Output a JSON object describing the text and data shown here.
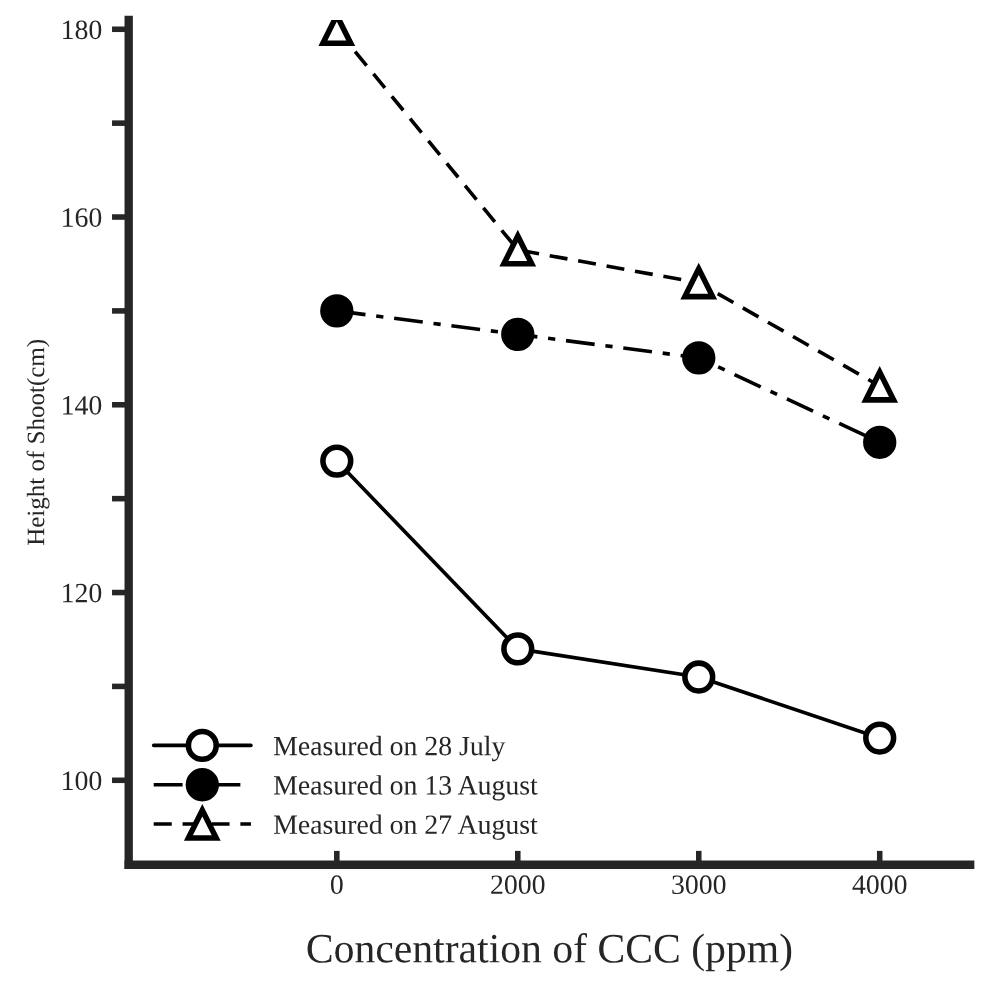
{
  "chart_data": {
    "type": "line",
    "xlabel": "Concentration of CCC (ppm)",
    "ylabel": "Height of Shoot(cm)",
    "categories": [
      "0",
      "2000",
      "3000",
      "4000"
    ],
    "series": [
      {
        "name": "Measured on 28 July",
        "color": "#000000",
        "marker": "circle",
        "line_style": "solid",
        "values": [
          134,
          114,
          111,
          104.5
        ]
      },
      {
        "name": "Measured on 13 August",
        "color": "#000000",
        "marker": "circle",
        "line_style": "dashdot",
        "values": [
          150,
          147.5,
          145,
          136
        ]
      },
      {
        "name": "Measured on 27 August",
        "color": "#000000",
        "marker": "triangle",
        "line_style": "dashed",
        "values": [
          180,
          156.5,
          153,
          142
        ]
      }
    ],
    "ylim": [
      91,
      181
    ],
    "yticks": [
      100,
      {
        "value": 110,
        "label": null
      },
      120,
      {
        "value": 130,
        "label": null
      },
      140,
      {
        "value": 150,
        "label": null
      },
      160,
      {
        "value": 170,
        "label": null
      },
      180
    ],
    "legend": "bottom left",
    "grid": false
  }
}
